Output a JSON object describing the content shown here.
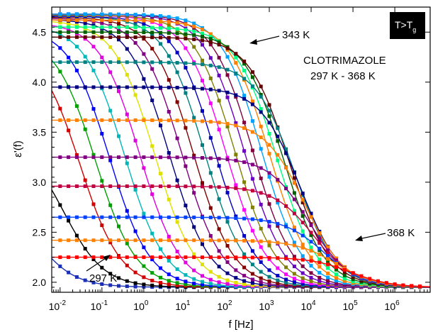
{
  "chart_data": {
    "type": "scatter",
    "title": "",
    "xlabel": "f [Hz]",
    "ylabel": "ε'(f)",
    "x_scale": "log",
    "xlim": [
      0.00631,
      7000000
    ],
    "ylim": [
      1.9,
      4.75
    ],
    "x_ticks": [
      {
        "value": 0.01,
        "base": "10",
        "exp": "-2"
      },
      {
        "value": 0.1,
        "base": "10",
        "exp": "-1"
      },
      {
        "value": 1,
        "base": "10",
        "exp": "0"
      },
      {
        "value": 10,
        "base": "10",
        "exp": "1"
      },
      {
        "value": 100,
        "base": "10",
        "exp": "2"
      },
      {
        "value": 1000,
        "base": "10",
        "exp": "3"
      },
      {
        "value": 10000,
        "base": "10",
        "exp": "4"
      },
      {
        "value": 100000,
        "base": "10",
        "exp": "5"
      },
      {
        "value": 1000000,
        "base": "10",
        "exp": "6"
      }
    ],
    "y_ticks": [
      "2.0",
      "2.5",
      "3.0",
      "3.5",
      "4.0",
      "4.5"
    ],
    "y_tick_values": [
      2.0,
      2.5,
      3.0,
      3.5,
      4.0,
      4.5
    ],
    "eps_inf": 1.95,
    "series": [
      {
        "color": "#1a2fb5",
        "fc": 0.002,
        "plateau": 3.05
      },
      {
        "color": "#000000",
        "fc": 0.012,
        "plateau": 3.47
      },
      {
        "color": "#d00000",
        "fc": 0.03,
        "plateau": 4.4
      },
      {
        "color": "#00a000",
        "fc": 0.07,
        "plateau": 4.48
      },
      {
        "color": "#0000ff",
        "fc": 0.15,
        "plateau": 4.55
      },
      {
        "color": "#00b8b8",
        "fc": 0.35,
        "plateau": 4.58
      },
      {
        "color": "#e000e0",
        "fc": 0.8,
        "plateau": 4.6
      },
      {
        "color": "#e0e000",
        "fc": 1.8,
        "plateau": 4.62
      },
      {
        "color": "#000080",
        "fc": 4,
        "plateau": 4.63
      },
      {
        "color": "#800080",
        "fc": 8,
        "plateau": 4.64
      },
      {
        "color": "#800000",
        "fc": 15,
        "plateau": 4.65
      },
      {
        "color": "#008080",
        "fc": 28,
        "plateau": 4.66
      },
      {
        "color": "#0000c0",
        "fc": 50,
        "plateau": 4.66
      },
      {
        "color": "#ff00ff",
        "fc": 90,
        "plateau": 4.67
      },
      {
        "color": "#808000",
        "fc": 150,
        "plateau": 4.67
      },
      {
        "color": "#6a00c0",
        "fc": 250,
        "plateau": 4.68
      },
      {
        "color": "#800040",
        "fc": 400,
        "plateau": 4.68
      },
      {
        "color": "#00a0ff",
        "fc": 650,
        "plateau": 4.68
      },
      {
        "color": "#ff8000",
        "fc": 1000,
        "plateau": 4.62
      },
      {
        "color": "#00ff80",
        "fc": 1500,
        "plateau": 4.55
      },
      {
        "color": "#006000",
        "fc": 2200,
        "plateau": 4.5
      },
      {
        "color": "#600000",
        "fc": 3000,
        "plateau": 4.45
      },
      {
        "color": "#008080",
        "fc": 4200,
        "plateau": 4.2
      },
      {
        "color": "#000080",
        "fc": 5500,
        "plateau": 3.95
      },
      {
        "color": "#ff8000",
        "fc": 7000,
        "plateau": 3.62
      },
      {
        "color": "#800080",
        "fc": 9000,
        "plateau": 3.25
      },
      {
        "color": "#c00040",
        "fc": 12000,
        "plateau": 2.96
      },
      {
        "color": "#0040ff",
        "fc": 20000,
        "plateau": 2.65
      },
      {
        "color": "#ff8000",
        "fc": 40000,
        "plateau": 2.42
      },
      {
        "color": "#ff0000",
        "fc": 90000,
        "plateau": 2.25
      }
    ]
  },
  "annotations": {
    "badge_main": "T>T",
    "badge_sub": "g",
    "label_343": "343 K",
    "label_368": "368 K",
    "label_297": "297 K",
    "sample_name": "CLOTRIMAZOLE",
    "temp_range": "297 K - 368 K"
  }
}
